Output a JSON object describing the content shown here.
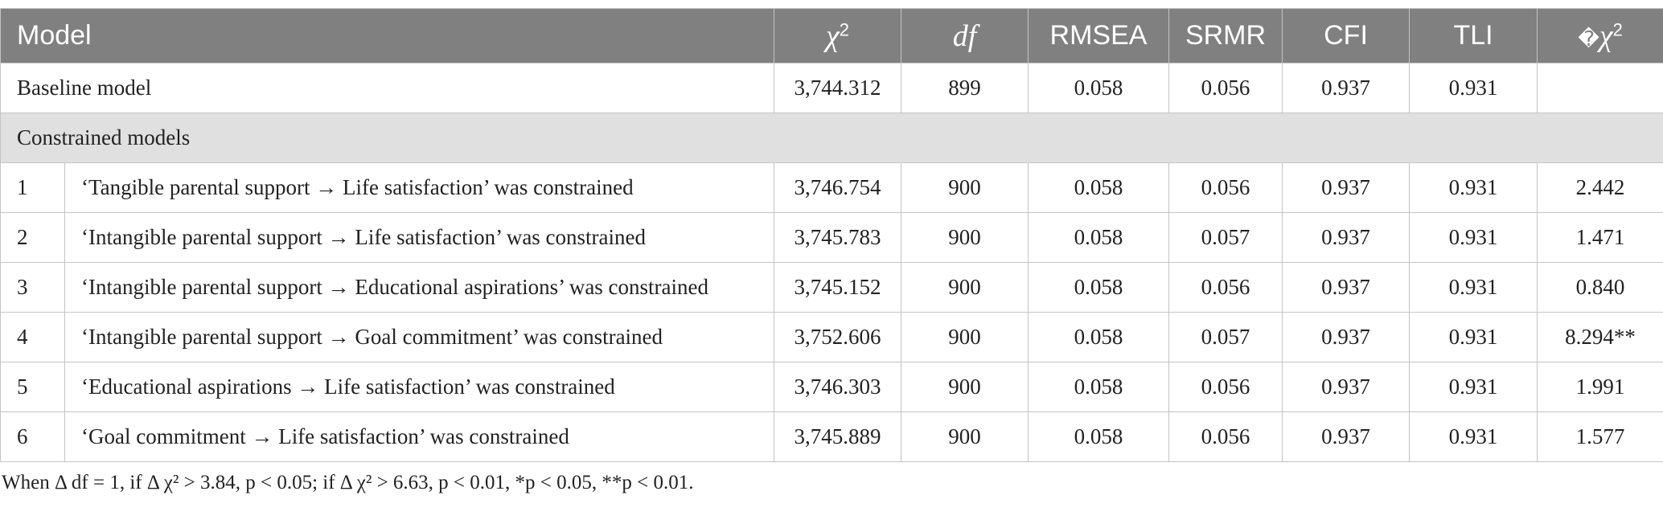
{
  "table": {
    "headers": {
      "model": "Model",
      "chi2_symbol": "χ",
      "chi2_sup": "2",
      "df": "df",
      "rmsea": "RMSEA",
      "srmr": "SRMR",
      "cfi": "CFI",
      "tli": "TLI",
      "delta_prefix": "�",
      "delta_symbol": "χ",
      "delta_sup": "2"
    },
    "baseline": {
      "label": "Baseline model",
      "chi2": "3,744.312",
      "df": "899",
      "rmsea": "0.058",
      "srmr": "0.056",
      "cfi": "0.937",
      "tli": "0.931",
      "delta": ""
    },
    "section_label": "Constrained models",
    "rows": [
      {
        "num": "1",
        "desc": "‘Tangible parental support → Life satisfaction’ was constrained",
        "chi2": "3,746.754",
        "df": "900",
        "rmsea": "0.058",
        "srmr": "0.056",
        "cfi": "0.937",
        "tli": "0.931",
        "delta": "2.442"
      },
      {
        "num": "2",
        "desc": "‘Intangible parental support → Life satisfaction’ was constrained",
        "chi2": "3,745.783",
        "df": "900",
        "rmsea": "0.058",
        "srmr": "0.057",
        "cfi": "0.937",
        "tli": "0.931",
        "delta": "1.471"
      },
      {
        "num": "3",
        "desc": "‘Intangible parental support → Educational aspirations’ was constrained",
        "chi2": "3,745.152",
        "df": "900",
        "rmsea": "0.058",
        "srmr": "0.056",
        "cfi": "0.937",
        "tli": "0.931",
        "delta": "0.840"
      },
      {
        "num": "4",
        "desc": "‘Intangible parental support → Goal commitment’ was constrained",
        "chi2": "3,752.606",
        "df": "900",
        "rmsea": "0.058",
        "srmr": "0.057",
        "cfi": "0.937",
        "tli": "0.931",
        "delta": "8.294**"
      },
      {
        "num": "5",
        "desc": "‘Educational aspirations → Life satisfaction’ was constrained",
        "chi2": "3,746.303",
        "df": "900",
        "rmsea": "0.058",
        "srmr": "0.056",
        "cfi": "0.937",
        "tli": "0.931",
        "delta": "1.991"
      },
      {
        "num": "6",
        "desc": "‘Goal commitment → Life satisfaction’ was constrained",
        "chi2": "3,745.889",
        "df": "900",
        "rmsea": "0.058",
        "srmr": "0.056",
        "cfi": "0.937",
        "tli": "0.931",
        "delta": "1.577"
      }
    ]
  },
  "footnote": "When  Δ  df = 1, if  Δ  χ² > 3.84, p < 0.05; if  Δ  χ² > 6.63, p < 0.01, *p < 0.05, **p < 0.01."
}
